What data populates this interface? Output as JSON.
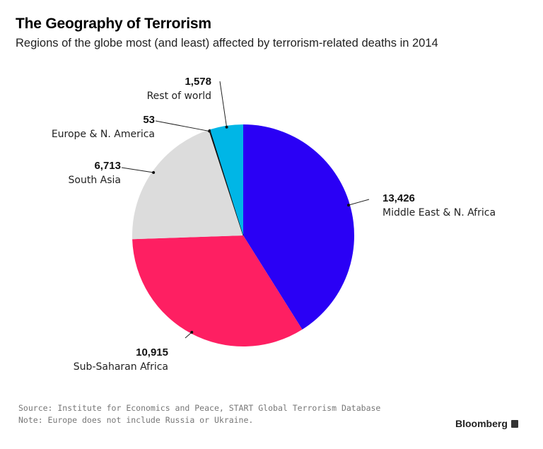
{
  "title": "The Geography of Terrorism",
  "subtitle": "Regions of the globe most (and least) affected by terrorism-related deaths in 2014",
  "chart_data": {
    "type": "pie",
    "title": "The Geography of Terrorism",
    "subtitle": "Regions of the globe most (and least) affected by terrorism-related deaths in 2014",
    "start_angle_deg": 0,
    "direction": "clockwise",
    "slices": [
      {
        "label": "Middle East & N. Africa",
        "value": 13426,
        "value_text": "13,426",
        "color": "#2a00f5"
      },
      {
        "label": "Sub-Saharan Africa",
        "value": 10915,
        "value_text": "10,915",
        "color": "#fe1f62"
      },
      {
        "label": "South Asia",
        "value": 6713,
        "value_text": "6,713",
        "color": "#dcdcdc"
      },
      {
        "label": "Europe & N. America",
        "value": 53,
        "value_text": "53",
        "color": "#111111"
      },
      {
        "label": "Rest of world",
        "value": 1578,
        "value_text": "1,578",
        "color": "#00b6e6"
      }
    ]
  },
  "footer": {
    "source": "Source: Institute for Economics and Peace, START Global Terrorism Database",
    "note": "Note: Europe does not include Russia or Ukraine.",
    "brand": "Bloomberg"
  }
}
